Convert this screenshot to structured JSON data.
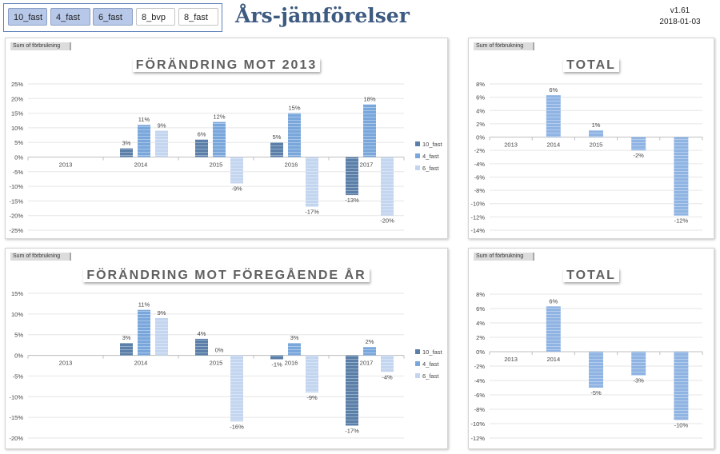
{
  "slicer": {
    "items": [
      {
        "label": "10_fast",
        "selected": true
      },
      {
        "label": "4_fast",
        "selected": true
      },
      {
        "label": "6_fast",
        "selected": true
      },
      {
        "label": "8_bvp",
        "selected": false
      },
      {
        "label": "8_fast",
        "selected": false
      }
    ]
  },
  "header": {
    "title": "Års-jämförelser",
    "version": "v1.61",
    "date": "2018-01-03"
  },
  "colors": {
    "10_fast": "#5b7fa8",
    "4_fast": "#7aa7db",
    "6_fast": "#c3d5ef",
    "total": "#8fb4e3"
  },
  "charts": {
    "top_left": {
      "field_button": "Sum of förbrukning",
      "chart_data": {
        "type": "bar",
        "title": "FÖRÄNDRING MOT 2013",
        "categories": [
          "2013",
          "2014",
          "2015",
          "2016",
          "2017"
        ],
        "series": [
          {
            "name": "10_fast",
            "values": [
              null,
              3,
              6,
              5,
              -13
            ]
          },
          {
            "name": "4_fast",
            "values": [
              null,
              11,
              12,
              15,
              18
            ]
          },
          {
            "name": "6_fast",
            "values": [
              null,
              9,
              -9,
              -17,
              -20
            ]
          }
        ],
        "ylim": [
          -25,
          25
        ],
        "yticks": [
          "25%",
          "20%",
          "15%",
          "10%",
          "5%",
          "0%",
          "-5%",
          "-10%",
          "-15%",
          "-20%",
          "-25%"
        ],
        "data_labels": [
          [
            null,
            "3%",
            "6%",
            "5%",
            "-13%"
          ],
          [
            null,
            "11%",
            "12%",
            "15%",
            "18%"
          ],
          [
            null,
            "9%",
            "-9%",
            "-17%",
            "-20%"
          ]
        ],
        "legend": "right"
      }
    },
    "bottom_left": {
      "field_button": "Sum of förbrukning",
      "chart_data": {
        "type": "bar",
        "title": "FÖRÄNDRING MOT FÖREGÅENDE ÅR",
        "categories": [
          "2013",
          "2014",
          "2015",
          "2016",
          "2017"
        ],
        "series": [
          {
            "name": "10_fast",
            "values": [
              null,
              3,
              4,
              -1,
              -17
            ]
          },
          {
            "name": "4_fast",
            "values": [
              null,
              11,
              0,
              3,
              2
            ]
          },
          {
            "name": "6_fast",
            "values": [
              null,
              9,
              -16,
              -9,
              -4
            ]
          }
        ],
        "ylim": [
          -20,
          15
        ],
        "yticks": [
          "15%",
          "10%",
          "5%",
          "0%",
          "-5%",
          "-10%",
          "-15%",
          "-20%"
        ],
        "data_labels": [
          [
            null,
            "3%",
            "4%",
            "-1%",
            "-17%"
          ],
          [
            null,
            "11%",
            "0%",
            "3%",
            "2%"
          ],
          [
            null,
            "9%",
            "-16%",
            "-9%",
            "-4%"
          ]
        ],
        "legend": "right"
      }
    },
    "top_right": {
      "field_button": "Sum of förbrukning",
      "chart_data": {
        "type": "bar",
        "title": "TOTAL",
        "categories": [
          "2013",
          "2014",
          "2015",
          "2016",
          "2017"
        ],
        "values": [
          null,
          6.3,
          1,
          -2,
          -11.8
        ],
        "data_labels": [
          null,
          "6%",
          "1%",
          "-2%",
          "-12%"
        ],
        "ylim": [
          -14,
          8
        ],
        "yticks": [
          "8%",
          "6%",
          "4%",
          "2%",
          "0%",
          "-2%",
          "-4%",
          "-6%",
          "-8%",
          "-10%",
          "-12%",
          "-14%"
        ]
      }
    },
    "bottom_right": {
      "field_button": "Sum of förbrukning",
      "chart_data": {
        "type": "bar",
        "title": "TOTAL",
        "categories": [
          "2013",
          "2014",
          "2015",
          "2016",
          "2017"
        ],
        "values": [
          null,
          6.3,
          -5,
          -3.3,
          -9.5
        ],
        "data_labels": [
          null,
          "6%",
          "-5%",
          "-3%",
          "-10%"
        ],
        "ylim": [
          -12,
          8
        ],
        "yticks": [
          "8%",
          "6%",
          "4%",
          "2%",
          "0%",
          "-2%",
          "-4%",
          "-6%",
          "-8%",
          "-10%",
          "-12%"
        ]
      }
    }
  }
}
